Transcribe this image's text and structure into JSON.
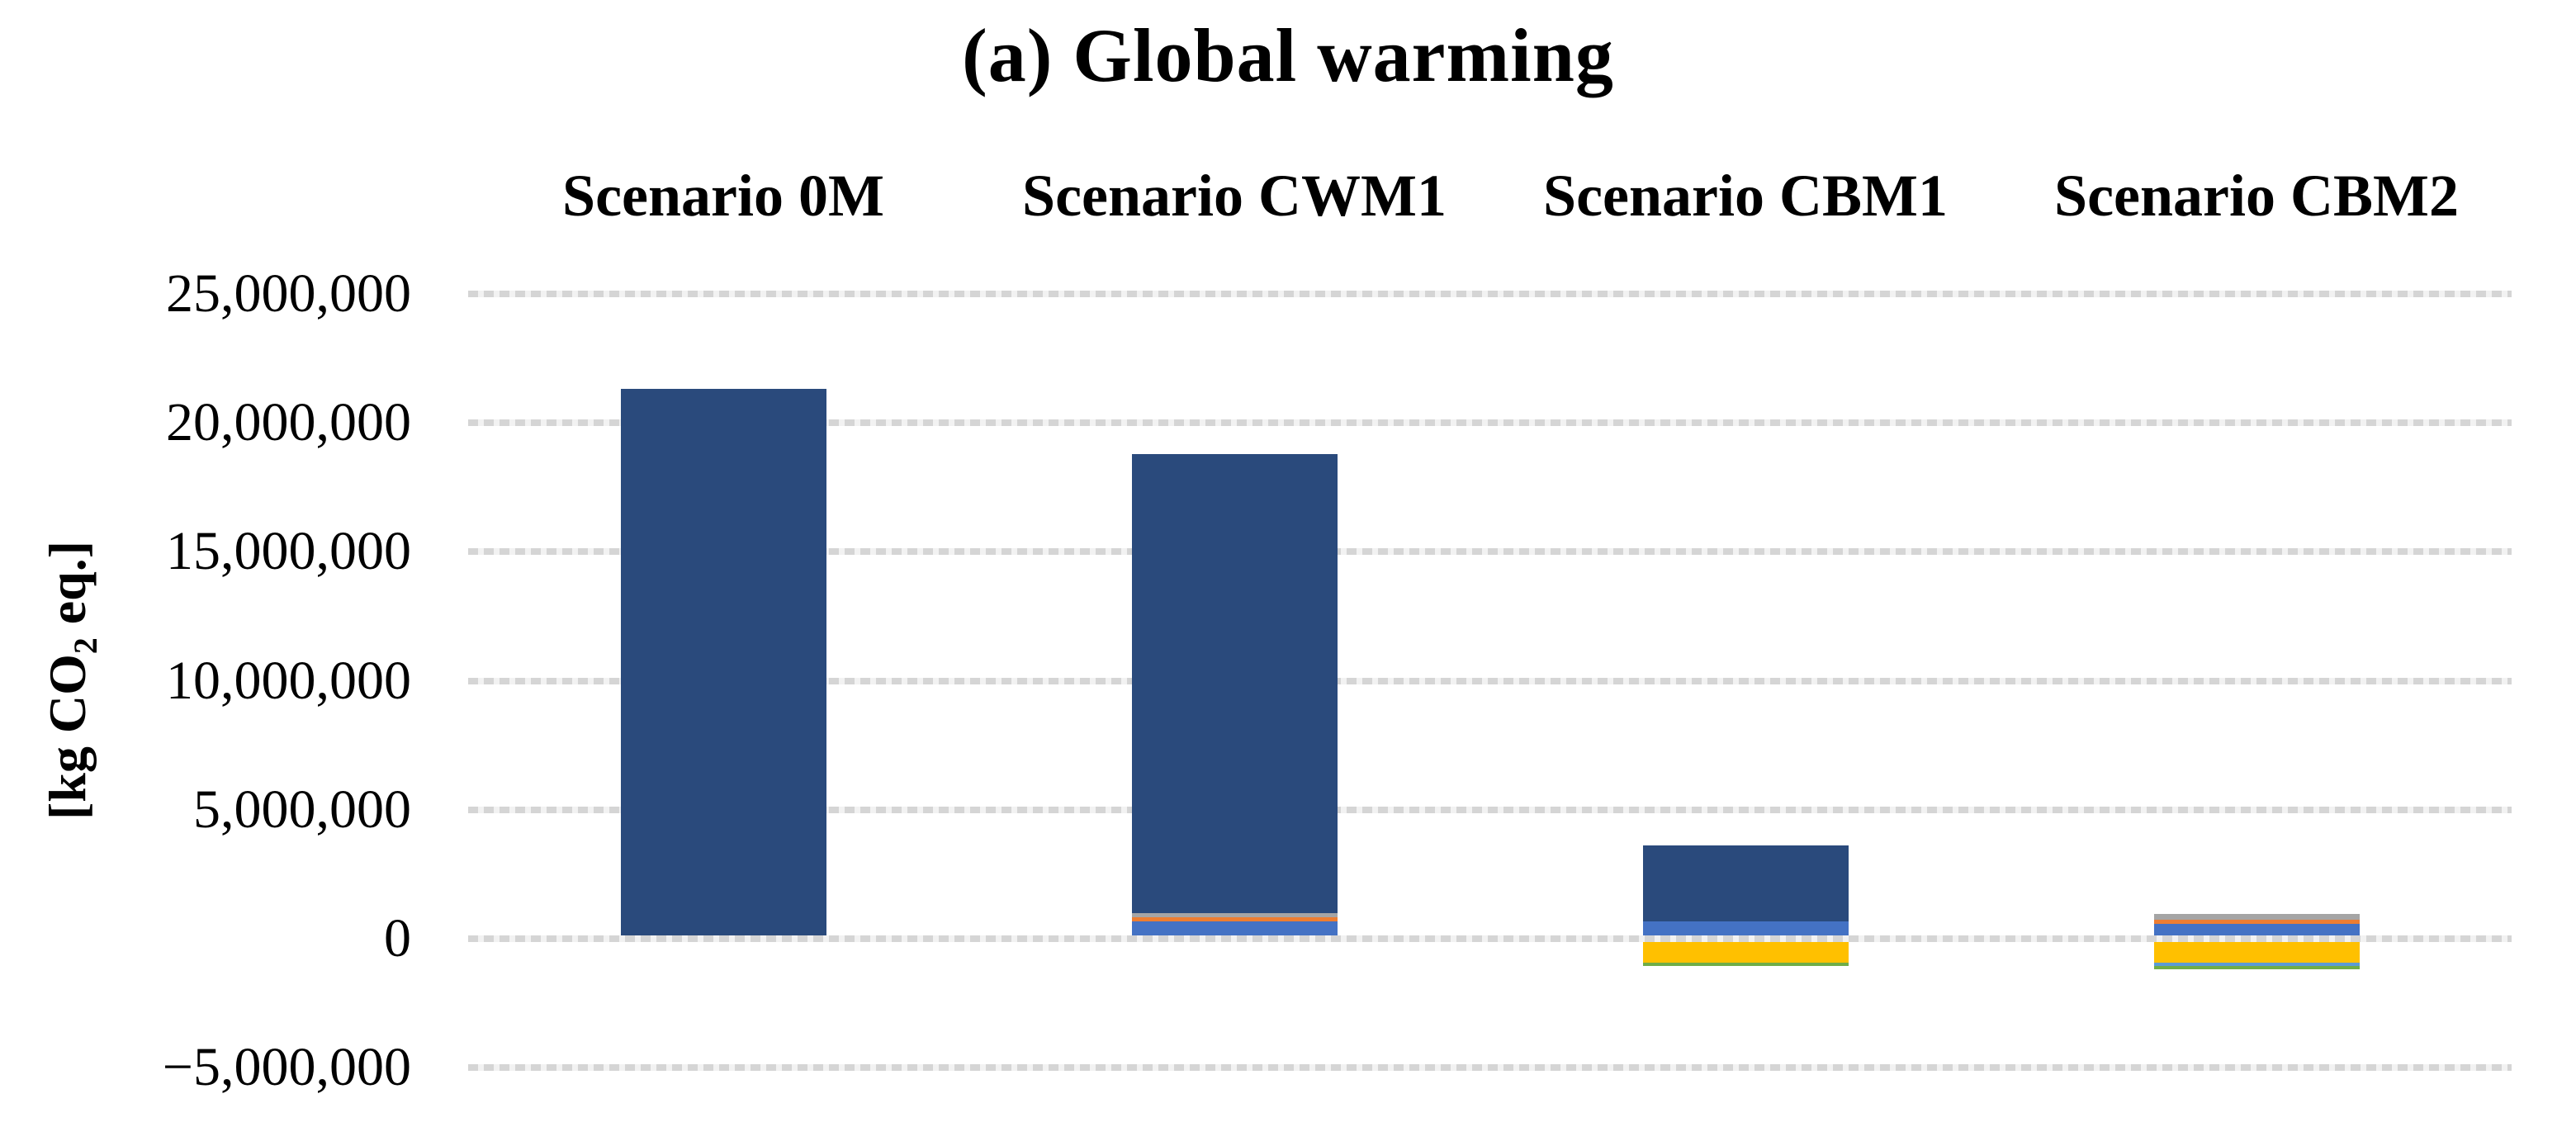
{
  "chart_data": {
    "type": "bar",
    "stacked": true,
    "title": "(a) Global warming",
    "ylabel_prefix": "[kg CO",
    "ylabel_sub": "2",
    "ylabel_suffix": " eq.]",
    "categories": [
      "Scenario 0M",
      "Scenario CWM1",
      "Scenario CBM1",
      "Scenario CBM2"
    ],
    "yticks": [
      25000000,
      20000000,
      15000000,
      10000000,
      5000000,
      0,
      -5000000
    ],
    "ytick_labels": [
      "25,000,000",
      "20,000,000",
      "15,000,000",
      "10,000,000",
      "5,000,000",
      "0",
      "−5,000,000"
    ],
    "ylim": [
      -5000000,
      25000000
    ],
    "grid": true,
    "gridline_color": "#d5d5d5",
    "legend": "none",
    "series": [
      {
        "name": "segment-royal-blue",
        "color": "#4472C4",
        "values": [
          0,
          550000,
          550000,
          450000
        ]
      },
      {
        "name": "segment-orange",
        "color": "#ED7D31",
        "values": [
          0,
          140000,
          0,
          150000
        ]
      },
      {
        "name": "segment-gray",
        "color": "#A5A5A5",
        "values": [
          0,
          160000,
          0,
          220000
        ]
      },
      {
        "name": "segment-navy",
        "color": "#2A4A7C",
        "values": [
          21200000,
          17800000,
          2950000,
          0
        ]
      },
      {
        "name": "segment-yellow",
        "color": "#FFC000",
        "values": [
          0,
          0,
          -800000,
          -800000
        ]
      },
      {
        "name": "segment-light-blue",
        "color": "#5B9BD5",
        "values": [
          0,
          0,
          0,
          -140000
        ]
      },
      {
        "name": "segment-green",
        "color": "#70AD47",
        "values": [
          0,
          0,
          -130000,
          -130000
        ]
      }
    ]
  }
}
